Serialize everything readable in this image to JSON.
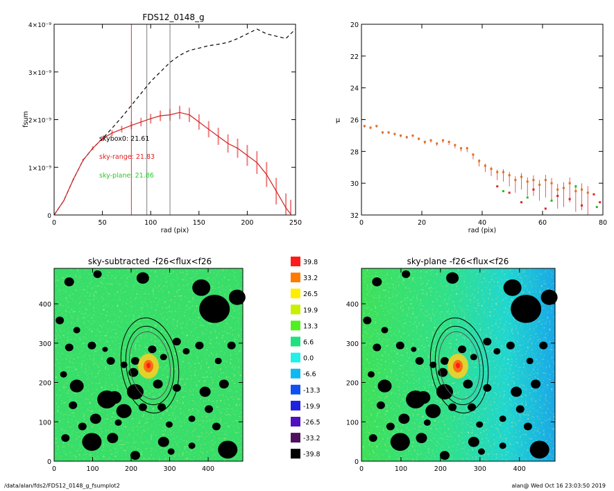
{
  "chart_data": [
    {
      "type": "line",
      "title": "FDS12_0148_g",
      "xlabel": "rad (pix)",
      "ylabel": "fsum",
      "xlim": [
        0,
        250
      ],
      "ylim": [
        0,
        4e-09
      ],
      "xticks": [
        "0",
        "50",
        "100",
        "150",
        "200",
        "250"
      ],
      "yticks": [
        "0",
        "1×10⁻⁹",
        "2×10⁻⁹",
        "3×10⁻⁹",
        "4×10⁻⁹"
      ],
      "vlines": [
        {
          "x": 80,
          "color": "#e03030"
        },
        {
          "x": 96,
          "color": "#808080"
        },
        {
          "x": 120,
          "color": "#808080"
        }
      ],
      "annotations": [
        {
          "text": "skybox0: 21.61",
          "color": "#000000"
        },
        {
          "text": "sky-range: 21.83",
          "color": "#e02020"
        },
        {
          "text": "sky-plane: 21.86",
          "color": "#20d020"
        }
      ],
      "series": [
        {
          "style": "dashed",
          "color": "#000000",
          "x": [
            0,
            10,
            20,
            30,
            40,
            50,
            60,
            70,
            80,
            90,
            100,
            110,
            120,
            130,
            140,
            150,
            160,
            170,
            180,
            190,
            200,
            210,
            220,
            230,
            240,
            250
          ],
          "y": [
            0,
            3e-10,
            7.5e-10,
            1.15e-09,
            1.4e-09,
            1.6e-09,
            1.82e-09,
            2.05e-09,
            2.3e-09,
            2.55e-09,
            2.8e-09,
            3e-09,
            3.2e-09,
            3.35e-09,
            3.45e-09,
            3.5e-09,
            3.55e-09,
            3.58e-09,
            3.62e-09,
            3.7e-09,
            3.8e-09,
            3.9e-09,
            3.8e-09,
            3.75e-09,
            3.7e-09,
            3.9e-09
          ]
        },
        {
          "style": "solid",
          "color": "#cc2020",
          "band_color": "#f08080",
          "x": [
            0,
            10,
            20,
            30,
            40,
            50,
            60,
            70,
            80,
            90,
            100,
            110,
            120,
            130,
            140,
            150,
            160,
            170,
            180,
            190,
            200,
            210,
            220,
            230,
            240,
            245
          ],
          "y": [
            0,
            3e-10,
            7.5e-10,
            1.15e-09,
            1.4e-09,
            1.6e-09,
            1.72e-09,
            1.8e-09,
            1.88e-09,
            1.95e-09,
            2.02e-09,
            2.08e-09,
            2.1e-09,
            2.15e-09,
            2.1e-09,
            1.95e-09,
            1.8e-09,
            1.65e-09,
            1.5e-09,
            1.4e-09,
            1.25e-09,
            1.1e-09,
            8.5e-10,
            5e-10,
            1.5e-10,
            2e-11
          ],
          "err": [
            0,
            1e-11,
            2e-11,
            3e-11,
            4e-11,
            5e-11,
            6e-11,
            7e-11,
            8e-11,
            9e-11,
            1e-10,
            1.1e-10,
            1.2e-10,
            1.4e-10,
            1.5e-10,
            1.6e-10,
            1.7e-10,
            1.8e-10,
            1.9e-10,
            2e-10,
            2.2e-10,
            2.4e-10,
            2.6e-10,
            2.8e-10,
            3e-10,
            3e-10
          ]
        }
      ]
    },
    {
      "type": "scatter",
      "xlabel": "rad (pix)",
      "ylabel": "μ",
      "xlim": [
        0,
        80
      ],
      "ylim": [
        32,
        20
      ],
      "xticks": [
        "0",
        "20",
        "40",
        "60",
        "80"
      ],
      "yticks": [
        "20",
        "22",
        "24",
        "26",
        "28",
        "30",
        "32"
      ],
      "series": [
        {
          "color": "#e07020",
          "x": [
            1,
            3,
            5,
            7,
            9,
            11,
            13,
            15,
            17,
            19,
            21,
            23,
            25,
            27,
            29,
            31,
            33,
            35,
            37,
            39,
            41,
            43,
            45,
            47,
            49,
            51,
            53,
            55,
            57,
            59,
            61,
            63,
            65,
            67,
            69,
            71,
            73,
            75
          ],
          "y": [
            26.4,
            26.5,
            26.4,
            26.8,
            26.8,
            26.9,
            27.0,
            27.1,
            27.0,
            27.2,
            27.4,
            27.3,
            27.5,
            27.3,
            27.4,
            27.6,
            27.8,
            27.8,
            28.2,
            28.6,
            28.9,
            29.1,
            29.3,
            29.3,
            29.5,
            29.8,
            29.6,
            29.9,
            29.8,
            30.1,
            29.8,
            30.0,
            30.4,
            30.3,
            30.0,
            30.5,
            30.4,
            30.6
          ],
          "err": [
            0.1,
            0.1,
            0.1,
            0.1,
            0.1,
            0.1,
            0.1,
            0.1,
            0.1,
            0.1,
            0.15,
            0.15,
            0.15,
            0.15,
            0.2,
            0.2,
            0.2,
            0.25,
            0.3,
            0.35,
            0.4,
            0.45,
            0.5,
            0.6,
            0.7,
            0.8,
            0.8,
            0.9,
            1.0,
            1.0,
            1.1,
            1.1,
            1.2,
            1.2,
            1.2,
            1.3,
            1.3,
            1.4
          ]
        },
        {
          "color": "#e02020",
          "x": [
            45,
            49,
            53,
            57,
            61,
            65,
            69,
            73,
            77,
            79
          ],
          "y": [
            30.2,
            30.6,
            31.2,
            30.4,
            31.6,
            30.8,
            31.0,
            31.4,
            30.7,
            31.2
          ],
          "err": [
            0,
            0,
            0,
            0,
            0,
            0,
            0,
            0,
            0,
            0
          ]
        },
        {
          "color": "#20c020",
          "x": [
            47,
            55,
            63,
            71,
            78
          ],
          "y": [
            30.5,
            30.9,
            31.1,
            30.2,
            31.5
          ],
          "err": [
            0,
            0,
            0,
            0,
            0
          ]
        }
      ]
    },
    {
      "type": "heatmap",
      "title": "sky-subtracted -f26<flux<f26",
      "xlim": [
        0,
        490
      ],
      "ylim": [
        0,
        490
      ],
      "xticks": [
        "0",
        "100",
        "200",
        "300",
        "400"
      ],
      "yticks": [
        "0",
        "100",
        "200",
        "300",
        "400"
      ]
    },
    {
      "type": "heatmap",
      "title": "sky-plane -f26<flux<f26",
      "xlim": [
        0,
        490
      ],
      "ylim": [
        0,
        490
      ],
      "xticks": [
        "0",
        "100",
        "200",
        "300",
        "400"
      ],
      "yticks": [
        "0",
        "100",
        "200",
        "300",
        "400"
      ]
    },
    {
      "type": "colorbar",
      "labels": [
        "39.8",
        "33.2",
        "26.5",
        "19.9",
        "13.3",
        "6.6",
        "0.0",
        "-6.6",
        "-13.3",
        "-19.9",
        "-26.5",
        "-33.2",
        "-39.8"
      ],
      "colors": [
        "#ff1a1a",
        "#ff7a00",
        "#ffee00",
        "#c8f000",
        "#50f020",
        "#20e080",
        "#20f0e8",
        "#10b8f0",
        "#1050f0",
        "#2020e0",
        "#5010c0",
        "#501060",
        "#000000"
      ]
    }
  ],
  "footer": {
    "left": "/data/alan/fds2/FDS12_0148_g_fsumplot2",
    "right": "alan@  Wed Oct 16 23:03:50 2019"
  }
}
